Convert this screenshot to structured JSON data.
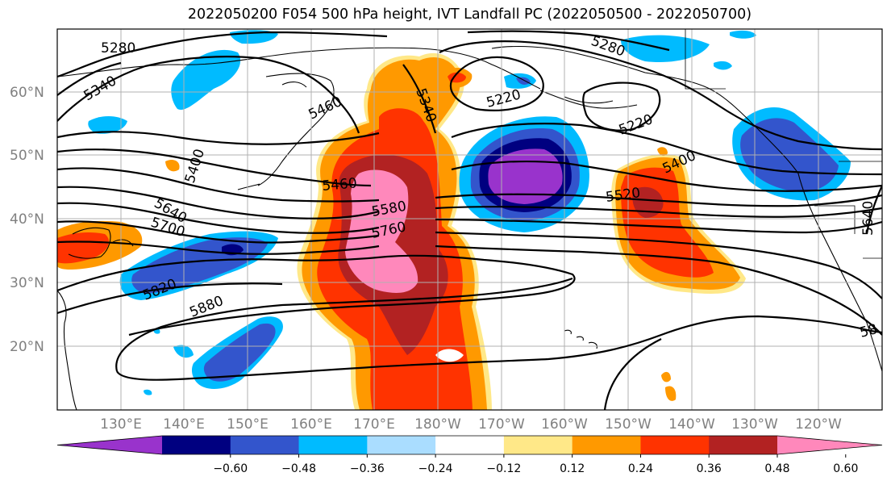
{
  "title": "2022050200 F054 500 hPa height, IVT Landfall PC (2022050500 - 2022050700)",
  "lat_labels": [
    "60°N",
    "50°N",
    "40°N",
    "30°N",
    "20°N"
  ],
  "lon_labels": [
    "130°E",
    "140°E",
    "150°E",
    "160°E",
    "170°E",
    "180°W",
    "170°W",
    "160°W",
    "150°W",
    "140°W",
    "130°W",
    "120°W"
  ],
  "colorbar": {
    "ticks": [
      "−0.60",
      "−0.48",
      "−0.36",
      "−0.24",
      "−0.12",
      "0.12",
      "0.24",
      "0.36",
      "0.48",
      "0.60"
    ],
    "colors": [
      "#9933cc",
      "#000080",
      "#3355cc",
      "#00bbff",
      "#aaddff",
      "#ffffff",
      "#ffe888",
      "#ff9900",
      "#ff3300",
      "#b22222",
      "#ff88bb"
    ]
  },
  "contour_labels": [
    "5280",
    "5340",
    "5460",
    "5340",
    "5220",
    "5280",
    "5220",
    "5400",
    "5460",
    "5580",
    "5760",
    "5520",
    "5640",
    "5700",
    "5820",
    "5880",
    "5640",
    "58"
  ]
}
